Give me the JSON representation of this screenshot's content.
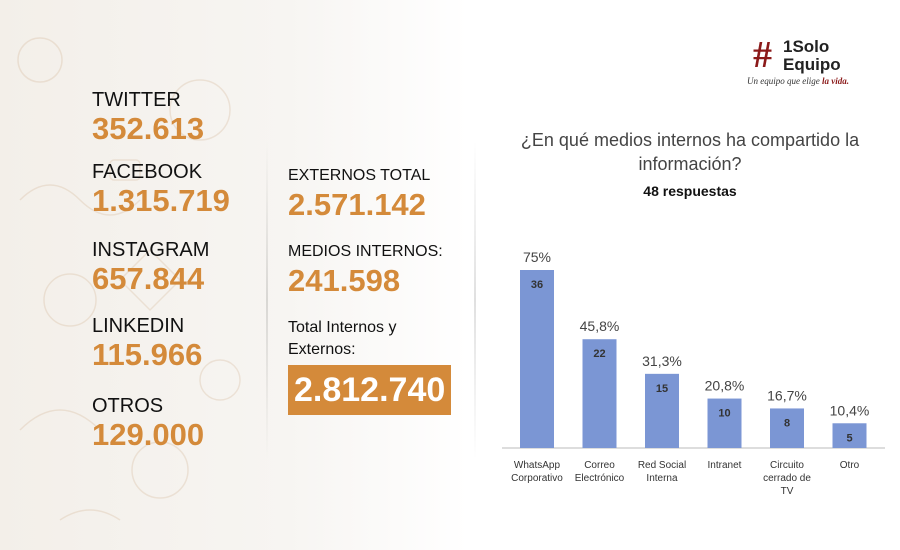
{
  "logo": {
    "hash": "#",
    "line1": "1Solo",
    "line2": "Equipo",
    "tagline": "Un equipo que elige",
    "tagline_accent": "la vida."
  },
  "left_stats": [
    {
      "label": "TWITTER",
      "value": "352.613"
    },
    {
      "label": "FACEBOOK",
      "value": "1.315.719"
    },
    {
      "label": "INSTAGRAM",
      "value": "657.844"
    },
    {
      "label": "LINKEDIN",
      "value": "115.966"
    },
    {
      "label": "OTROS",
      "value": "129.000"
    }
  ],
  "middle": {
    "externos_label": "EXTERNOS TOTAL",
    "externos_value": "2.571.142",
    "internos_label": "MEDIOS INTERNOS:",
    "internos_value": "241.598",
    "total_label": "Total Internos y Externos:",
    "total_value": "2.812.740"
  },
  "colors": {
    "accent": "#d48a3a",
    "bar": "#7b96d4",
    "brand": "#8b1a1a"
  },
  "chart_data": {
    "type": "bar",
    "title": "¿En qué medios internos ha compartido la información?",
    "subtitle": "48 respuestas",
    "categories": [
      [
        "WhatsApp",
        "Corporativo"
      ],
      [
        "Correo",
        "Electrónico"
      ],
      [
        "Red Social",
        "Interna"
      ],
      [
        "Intranet"
      ],
      [
        "Circuito",
        "cerrado de",
        "TV"
      ],
      [
        "Otro"
      ]
    ],
    "values": [
      36,
      22,
      15,
      10,
      8,
      5
    ],
    "percent_labels": [
      "75%",
      "45,8%",
      "31,3%",
      "20,8%",
      "16,7%",
      "10,4%"
    ],
    "ylim": [
      0,
      48
    ],
    "grid": false
  }
}
